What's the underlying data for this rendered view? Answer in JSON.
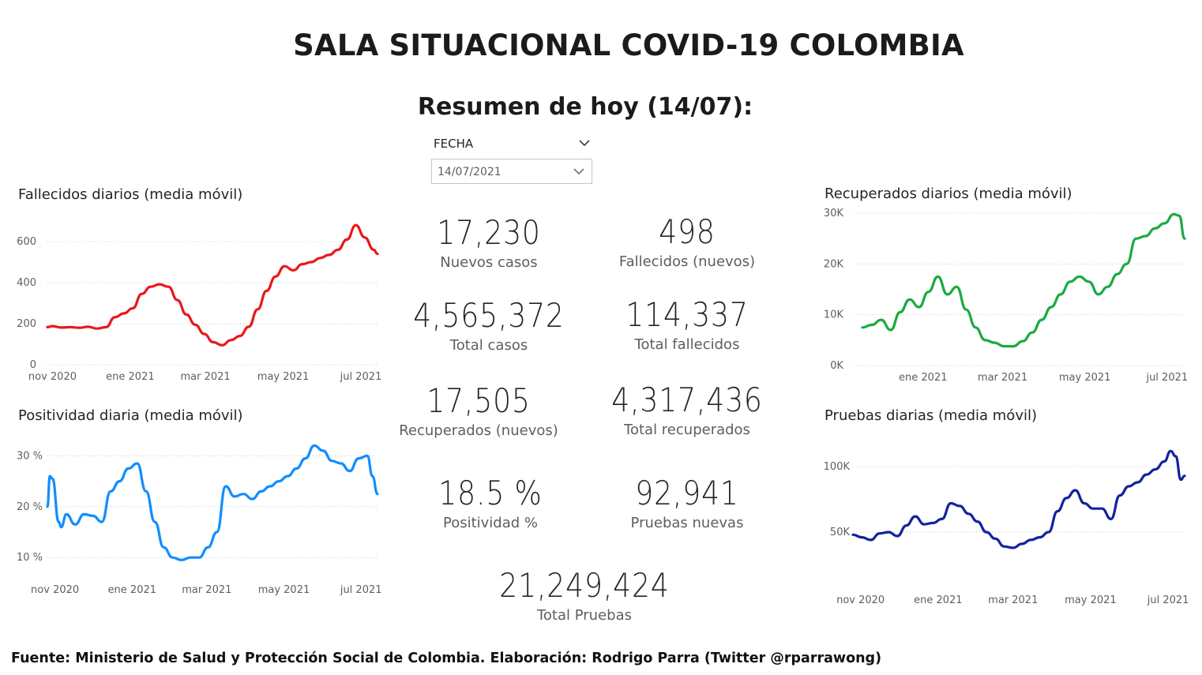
{
  "title": "SALA SITUACIONAL COVID-19 COLOMBIA",
  "summary_title": "Resumen de hoy (14/07):",
  "slicer": {
    "label": "FECHA",
    "value": "14/07/2021",
    "icon": "chevron-down-icon"
  },
  "kpis": {
    "nuevos_casos": {
      "value": "17,230",
      "label": "Nuevos casos"
    },
    "fallecidos_nuevos": {
      "value": "498",
      "label": "Fallecidos (nuevos)"
    },
    "total_casos": {
      "value": "4,565,372",
      "label": "Total casos"
    },
    "total_fallecidos": {
      "value": "114,337",
      "label": "Total fallecidos"
    },
    "recuperados_nuevos": {
      "value": "17,505",
      "label": "Recuperados (nuevos)"
    },
    "total_recuperados": {
      "value": "4,317,436",
      "label": "Total recuperados"
    },
    "positividad": {
      "value": "18.5 %",
      "label": "Positividad %"
    },
    "pruebas_nuevas": {
      "value": "92,941",
      "label": "Pruebas nuevas"
    },
    "total_pruebas": {
      "value": "21,249,424",
      "label": "Total Pruebas"
    }
  },
  "footer": "Fuente: Ministerio de Salud y Protección Social de Colombia. Elaboración: Rodrigo Parra (Twitter @rparrawong)",
  "chart_data": [
    {
      "id": "fallecidos",
      "type": "line",
      "title": "Fallecidos diarios (media móvil)",
      "color": "#e8191a",
      "grid": true,
      "ylim": [
        0,
        700
      ],
      "yticks": [
        0,
        200,
        400,
        600
      ],
      "ytick_labels": [
        "0",
        "200",
        "400",
        "600"
      ],
      "xlim": [
        "2020-10-28",
        "2021-07-14"
      ],
      "xticks": [
        "2020-11-01",
        "2021-01-01",
        "2021-03-01",
        "2021-05-01",
        "2021-07-01"
      ],
      "xtick_labels": [
        "nov 2020",
        "ene 2021",
        "mar 2021",
        "may 2021",
        "jul 2021"
      ],
      "series": [
        {
          "x": [
            "2020-10-28",
            "2020-11-01",
            "2020-11-08",
            "2020-11-15",
            "2020-11-22",
            "2020-11-29",
            "2020-12-06",
            "2020-12-13",
            "2020-12-20",
            "2020-12-27",
            "2021-01-03",
            "2021-01-10",
            "2021-01-17",
            "2021-01-24",
            "2021-01-31",
            "2021-02-07",
            "2021-02-14",
            "2021-02-21",
            "2021-02-28",
            "2021-03-07",
            "2021-03-14",
            "2021-03-21",
            "2021-03-28",
            "2021-04-04",
            "2021-04-11",
            "2021-04-18",
            "2021-04-25",
            "2021-05-02",
            "2021-05-09",
            "2021-05-16",
            "2021-05-23",
            "2021-05-30",
            "2021-06-06",
            "2021-06-13",
            "2021-06-20",
            "2021-06-27",
            "2021-07-04",
            "2021-07-11",
            "2021-07-14"
          ],
          "y": [
            183,
            188,
            181,
            183,
            180,
            185,
            176,
            183,
            232,
            250,
            275,
            345,
            380,
            392,
            380,
            315,
            245,
            195,
            150,
            110,
            95,
            120,
            140,
            185,
            270,
            360,
            430,
            480,
            460,
            490,
            500,
            520,
            535,
            560,
            610,
            680,
            620,
            560,
            540
          ]
        }
      ]
    },
    {
      "id": "positividad",
      "type": "line",
      "title": "Positividad diaria (media móvil)",
      "color": "#118dff",
      "grid": true,
      "ylim": [
        6,
        33
      ],
      "yticks": [
        10,
        20,
        30
      ],
      "ytick_labels": [
        "10 %",
        "20 %",
        "30 %"
      ],
      "xlim": [
        "2020-10-26",
        "2021-07-14"
      ],
      "xticks": [
        "2020-11-01",
        "2021-01-01",
        "2021-03-01",
        "2021-05-01",
        "2021-07-01"
      ],
      "xtick_labels": [
        "nov 2020",
        "ene 2021",
        "mar 2021",
        "may 2021",
        "jul 2021"
      ],
      "series": [
        {
          "x": [
            "2020-10-26",
            "2020-10-28",
            "2020-10-30",
            "2020-11-04",
            "2020-11-06",
            "2020-11-10",
            "2020-11-17",
            "2020-11-24",
            "2020-12-01",
            "2020-12-08",
            "2020-12-15",
            "2020-12-22",
            "2020-12-29",
            "2021-01-05",
            "2021-01-12",
            "2021-01-19",
            "2021-01-26",
            "2021-02-02",
            "2021-02-09",
            "2021-02-16",
            "2021-02-23",
            "2021-03-02",
            "2021-03-09",
            "2021-03-16",
            "2021-03-23",
            "2021-03-30",
            "2021-04-06",
            "2021-04-13",
            "2021-04-20",
            "2021-04-27",
            "2021-05-04",
            "2021-05-11",
            "2021-05-18",
            "2021-05-25",
            "2021-06-01",
            "2021-06-08",
            "2021-06-15",
            "2021-06-22",
            "2021-06-29",
            "2021-07-06",
            "2021-07-10",
            "2021-07-14"
          ],
          "y": [
            20,
            26,
            25.5,
            17,
            16,
            18.5,
            16.5,
            18.5,
            18.2,
            17,
            23,
            25,
            27.5,
            28.5,
            23,
            17,
            12,
            10,
            9.5,
            10,
            10,
            12,
            15,
            24,
            22,
            22.5,
            21.5,
            23,
            24,
            25,
            26,
            27.5,
            29.5,
            32,
            31,
            29,
            28.5,
            27,
            29.5,
            30,
            26,
            22.5
          ]
        }
      ]
    },
    {
      "id": "recuperados",
      "type": "line",
      "title": "Recuperados diarios (media móvil)",
      "color": "#1aab40",
      "grid": true,
      "ylim": [
        0,
        30000
      ],
      "yticks": [
        0,
        10000,
        20000,
        30000
      ],
      "ytick_labels": [
        "0K",
        "10K",
        "20K",
        "30K"
      ],
      "xlim": [
        "2020-11-10",
        "2021-07-14"
      ],
      "xticks": [
        "2021-01-01",
        "2021-03-01",
        "2021-05-01",
        "2021-07-01"
      ],
      "xtick_labels": [
        "ene 2021",
        "mar 2021",
        "may 2021",
        "jul 2021"
      ],
      "series": [
        {
          "x": [
            "2020-11-17",
            "2020-11-24",
            "2020-12-01",
            "2020-12-08",
            "2020-12-15",
            "2020-12-22",
            "2020-12-29",
            "2021-01-05",
            "2021-01-12",
            "2021-01-19",
            "2021-01-26",
            "2021-02-02",
            "2021-02-09",
            "2021-02-16",
            "2021-02-23",
            "2021-03-02",
            "2021-03-09",
            "2021-03-16",
            "2021-03-23",
            "2021-03-30",
            "2021-04-06",
            "2021-04-13",
            "2021-04-20",
            "2021-04-27",
            "2021-05-04",
            "2021-05-11",
            "2021-05-18",
            "2021-05-25",
            "2021-06-01",
            "2021-06-08",
            "2021-06-15",
            "2021-06-22",
            "2021-06-29",
            "2021-07-06",
            "2021-07-10",
            "2021-07-14"
          ],
          "y": [
            7500,
            8000,
            9000,
            7000,
            10500,
            13000,
            11500,
            14500,
            17500,
            14000,
            15500,
            11000,
            7500,
            5000,
            4500,
            3800,
            3800,
            4800,
            6500,
            9000,
            11500,
            14000,
            16500,
            17500,
            16500,
            14000,
            15500,
            18000,
            20000,
            25000,
            25500,
            27000,
            28000,
            29800,
            29500,
            25000
          ]
        }
      ]
    },
    {
      "id": "pruebas",
      "type": "line",
      "title": "Pruebas diarias (media móvil)",
      "color": "#12239e",
      "grid": true,
      "ylim": [
        15000,
        120000
      ],
      "yticks": [
        50000,
        100000
      ],
      "ytick_labels": [
        "50K",
        "100K"
      ],
      "xlim": [
        "2020-10-26",
        "2021-07-14"
      ],
      "xticks": [
        "2020-11-01",
        "2021-01-01",
        "2021-03-01",
        "2021-05-01",
        "2021-07-01"
      ],
      "xtick_labels": [
        "nov 2020",
        "ene 2021",
        "mar 2021",
        "may 2021",
        "jul 2021"
      ],
      "series": [
        {
          "x": [
            "2020-10-26",
            "2020-11-02",
            "2020-11-09",
            "2020-11-16",
            "2020-11-23",
            "2020-11-30",
            "2020-12-07",
            "2020-12-14",
            "2020-12-21",
            "2020-12-28",
            "2021-01-04",
            "2021-01-11",
            "2021-01-18",
            "2021-01-25",
            "2021-02-01",
            "2021-02-08",
            "2021-02-15",
            "2021-02-22",
            "2021-03-01",
            "2021-03-08",
            "2021-03-15",
            "2021-03-22",
            "2021-03-29",
            "2021-04-05",
            "2021-04-12",
            "2021-04-19",
            "2021-04-26",
            "2021-05-03",
            "2021-05-10",
            "2021-05-17",
            "2021-05-24",
            "2021-05-31",
            "2021-06-07",
            "2021-06-14",
            "2021-06-21",
            "2021-06-28",
            "2021-07-03",
            "2021-07-07",
            "2021-07-11",
            "2021-07-14"
          ],
          "y": [
            48000,
            46000,
            44000,
            49000,
            50000,
            47000,
            55000,
            62000,
            56000,
            57000,
            60000,
            72000,
            70000,
            64000,
            58000,
            50000,
            45000,
            39000,
            38000,
            41000,
            44000,
            46000,
            50000,
            66000,
            76000,
            82000,
            72000,
            68000,
            68000,
            60000,
            78000,
            85000,
            88000,
            94000,
            98000,
            104000,
            112000,
            108000,
            90000,
            93000
          ]
        }
      ]
    }
  ]
}
